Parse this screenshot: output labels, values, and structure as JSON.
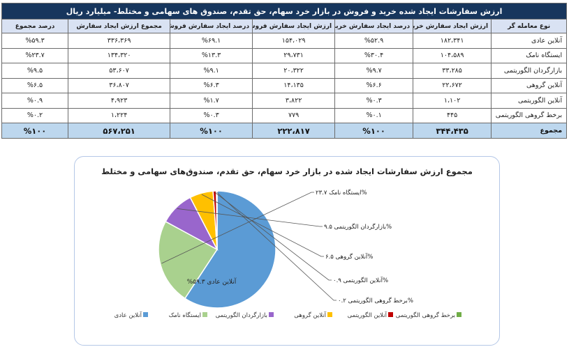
{
  "table": {
    "title": "ارزش سفارشات ایجاد شده خرید و فروش در بازار خرد سهام، حق تقدم، صندوق های سهامی و مختلط- میلیارد ریال",
    "headers": [
      "نوع معامله گر",
      "ارزش ایجاد سفارش خرید",
      "درصد ایجاد سفارش خرید",
      "ارزش ایجاد سفارش فروش",
      "درصد ایجاد سفارش فروش",
      "مجموع ارزش ایجاد سفارش",
      "درصد مجموع"
    ],
    "rows": [
      [
        "آنلاین عادی",
        "۱۸۲،۳۴۱",
        "%۵۲.۹",
        "۱۵۴،۰۲۹",
        "%۶۹.۱",
        "۳۳۶،۳۶۹",
        "%۵۹.۳"
      ],
      [
        "ایستگاه نامک",
        "۱۰۴،۵۸۹",
        "%۳۰.۴",
        "۲۹،۷۳۱",
        "%۱۳.۳",
        "۱۳۴،۳۲۰",
        "%۲۳.۷"
      ],
      [
        "بازارگردان الگوریتمی",
        "۳۳،۲۸۵",
        "%۹.۷",
        "۲۰،۳۲۲",
        "%۹.۱",
        "۵۳،۶۰۷",
        "%۹.۵"
      ],
      [
        "آنلاین گروهی",
        "۲۲،۶۷۲",
        "%۶.۶",
        "۱۴،۱۳۵",
        "%۶.۳",
        "۳۶،۸۰۷",
        "%۶.۵"
      ],
      [
        "آنلاین الگوریتمی",
        "۱،۱۰۲",
        "%۰.۳",
        "۳،۸۲۲",
        "%۱.۷",
        "۴،۹۲۳",
        "%۰.۹"
      ],
      [
        "برخط گروهی الگوریتمی",
        "۴۴۵",
        "%۰.۱",
        "۷۷۹",
        "%۰.۳",
        "۱،۲۲۴",
        "%۰.۲"
      ]
    ],
    "total": [
      "مجموع",
      "۳۴۴،۴۳۵",
      "%۱۰۰",
      "۲۲۲،۸۱۷",
      "%۱۰۰",
      "۵۶۷،۲۵۱",
      "%۱۰۰"
    ]
  },
  "chart_data": {
    "type": "pie",
    "title": "مجموع ارزش سفارشات ایجاد شده در بازار خرد سهام، حق تقدم، صندوق‌های سهامی و مختلط",
    "categories": [
      "آنلاین عادی",
      "ایستگاه نامک",
      "بازارگردان الگوریتمی",
      "آنلاین گروهی",
      "آنلاین الگوریتمی",
      "برخط گروهی الگوریتمی"
    ],
    "values": [
      59.3,
      23.7,
      9.5,
      6.5,
      0.9,
      0.2
    ],
    "data_labels": [
      "آنلاین عادی ۵۹.۳%",
      "ایستگاه نامک ۲۳.۷%",
      "بازارگردان الگوریتمی ۹.۵%",
      "آنلاین گروهی ۶.۵%",
      "آنلاین الگوریتمی ۰.۹%",
      "برخط گروهی الگوریتمی ۰.۲%"
    ],
    "colors": [
      "#5b9bd5",
      "#a9d18e",
      "#9966cc",
      "#ffc000",
      "#c00000",
      "#70ad47"
    ],
    "legend_position": "bottom"
  }
}
